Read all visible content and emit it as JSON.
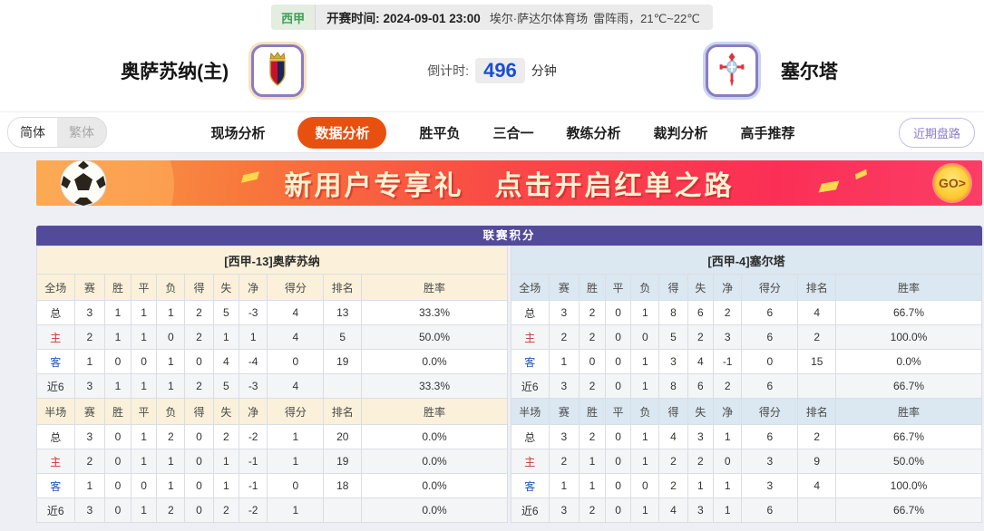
{
  "top_bar": {
    "league": "西甲",
    "kickoff_label": "开赛时间:",
    "kickoff_time": "2024-09-01 23:00",
    "venue": "埃尔·萨达尔体育场",
    "weather": "雷阵雨，21℃~22℃"
  },
  "header": {
    "home_name": "奥萨苏纳(主)",
    "away_name": "塞尔塔",
    "countdown_label": "倒计时:",
    "countdown_value": "496",
    "countdown_unit": "分钟"
  },
  "nav": {
    "lang_simplified": "简体",
    "lang_traditional": "繁体",
    "tabs": [
      {
        "label": "现场分析",
        "active": false
      },
      {
        "label": "数据分析",
        "active": true
      },
      {
        "label": "胜平负",
        "active": false
      },
      {
        "label": "三合一",
        "active": false
      },
      {
        "label": "教练分析",
        "active": false
      },
      {
        "label": "裁判分析",
        "active": false
      },
      {
        "label": "高手推荐",
        "active": false
      }
    ],
    "recent_trend": "近期盘路"
  },
  "banner": {
    "text_left": "新用户专享礼",
    "text_right": "点击开启红单之路",
    "go_label": "GO>"
  },
  "league_table": {
    "title": "联赛积分",
    "columns_full": [
      "全场",
      "赛",
      "胜",
      "平",
      "负",
      "得",
      "失",
      "净",
      "得分",
      "排名",
      "胜率"
    ],
    "columns_half": [
      "半场",
      "赛",
      "胜",
      "平",
      "负",
      "得",
      "失",
      "净",
      "得分",
      "排名",
      "胜率"
    ],
    "home": {
      "header": "[西甲-13]奥萨苏纳",
      "full_rows": [
        {
          "label": "总",
          "type": "total",
          "values": [
            "3",
            "1",
            "1",
            "1",
            "2",
            "5",
            "-3",
            "4",
            "13",
            "33.3%"
          ]
        },
        {
          "label": "主",
          "type": "home",
          "values": [
            "2",
            "1",
            "1",
            "0",
            "2",
            "1",
            "1",
            "4",
            "5",
            "50.0%"
          ]
        },
        {
          "label": "客",
          "type": "away",
          "values": [
            "1",
            "0",
            "0",
            "1",
            "0",
            "4",
            "-4",
            "0",
            "19",
            "0.0%"
          ]
        },
        {
          "label": "近6",
          "type": "recent",
          "values": [
            "3",
            "1",
            "1",
            "1",
            "2",
            "5",
            "-3",
            "4",
            "",
            "33.3%"
          ]
        }
      ],
      "half_rows": [
        {
          "label": "总",
          "type": "total",
          "values": [
            "3",
            "0",
            "1",
            "2",
            "0",
            "2",
            "-2",
            "1",
            "20",
            "0.0%"
          ]
        },
        {
          "label": "主",
          "type": "home",
          "values": [
            "2",
            "0",
            "1",
            "1",
            "0",
            "1",
            "-1",
            "1",
            "19",
            "0.0%"
          ]
        },
        {
          "label": "客",
          "type": "away",
          "values": [
            "1",
            "0",
            "0",
            "1",
            "0",
            "1",
            "-1",
            "0",
            "18",
            "0.0%"
          ]
        },
        {
          "label": "近6",
          "type": "recent",
          "values": [
            "3",
            "0",
            "1",
            "2",
            "0",
            "2",
            "-2",
            "1",
            "",
            "0.0%"
          ]
        }
      ]
    },
    "away": {
      "header": "[西甲-4]塞尔塔",
      "full_rows": [
        {
          "label": "总",
          "type": "total",
          "values": [
            "3",
            "2",
            "0",
            "1",
            "8",
            "6",
            "2",
            "6",
            "4",
            "66.7%"
          ]
        },
        {
          "label": "主",
          "type": "home",
          "values": [
            "2",
            "2",
            "0",
            "0",
            "5",
            "2",
            "3",
            "6",
            "2",
            "100.0%"
          ]
        },
        {
          "label": "客",
          "type": "away",
          "values": [
            "1",
            "0",
            "0",
            "1",
            "3",
            "4",
            "-1",
            "0",
            "15",
            "0.0%"
          ]
        },
        {
          "label": "近6",
          "type": "recent",
          "values": [
            "3",
            "2",
            "0",
            "1",
            "8",
            "6",
            "2",
            "6",
            "",
            "66.7%"
          ]
        }
      ],
      "half_rows": [
        {
          "label": "总",
          "type": "total",
          "values": [
            "3",
            "2",
            "0",
            "1",
            "4",
            "3",
            "1",
            "6",
            "2",
            "66.7%"
          ]
        },
        {
          "label": "主",
          "type": "home",
          "values": [
            "2",
            "1",
            "0",
            "1",
            "2",
            "2",
            "0",
            "3",
            "9",
            "50.0%"
          ]
        },
        {
          "label": "客",
          "type": "away",
          "values": [
            "1",
            "1",
            "0",
            "0",
            "2",
            "1",
            "1",
            "3",
            "4",
            "100.0%"
          ]
        },
        {
          "label": "近6",
          "type": "recent",
          "values": [
            "3",
            "2",
            "0",
            "1",
            "4",
            "3",
            "1",
            "6",
            "",
            "66.7%"
          ]
        }
      ]
    }
  },
  "colors": {
    "accent_orange": "#e85010",
    "title_purple": "#544a9b",
    "home_cream": "#fbf1da",
    "away_blue": "#dbe7f1",
    "home_row_red": "#c43a2e",
    "away_row_blue": "#2456b8",
    "league_green": "#3f9e57",
    "countdown_blue": "#1b4ed3",
    "recent_trend_purple": "#8a7cd0",
    "banner_gradient_start": "#f8a24b",
    "banner_gradient_end": "#fb2f56",
    "go_gold": "#fdc930",
    "content_bg": "#edeff4"
  }
}
